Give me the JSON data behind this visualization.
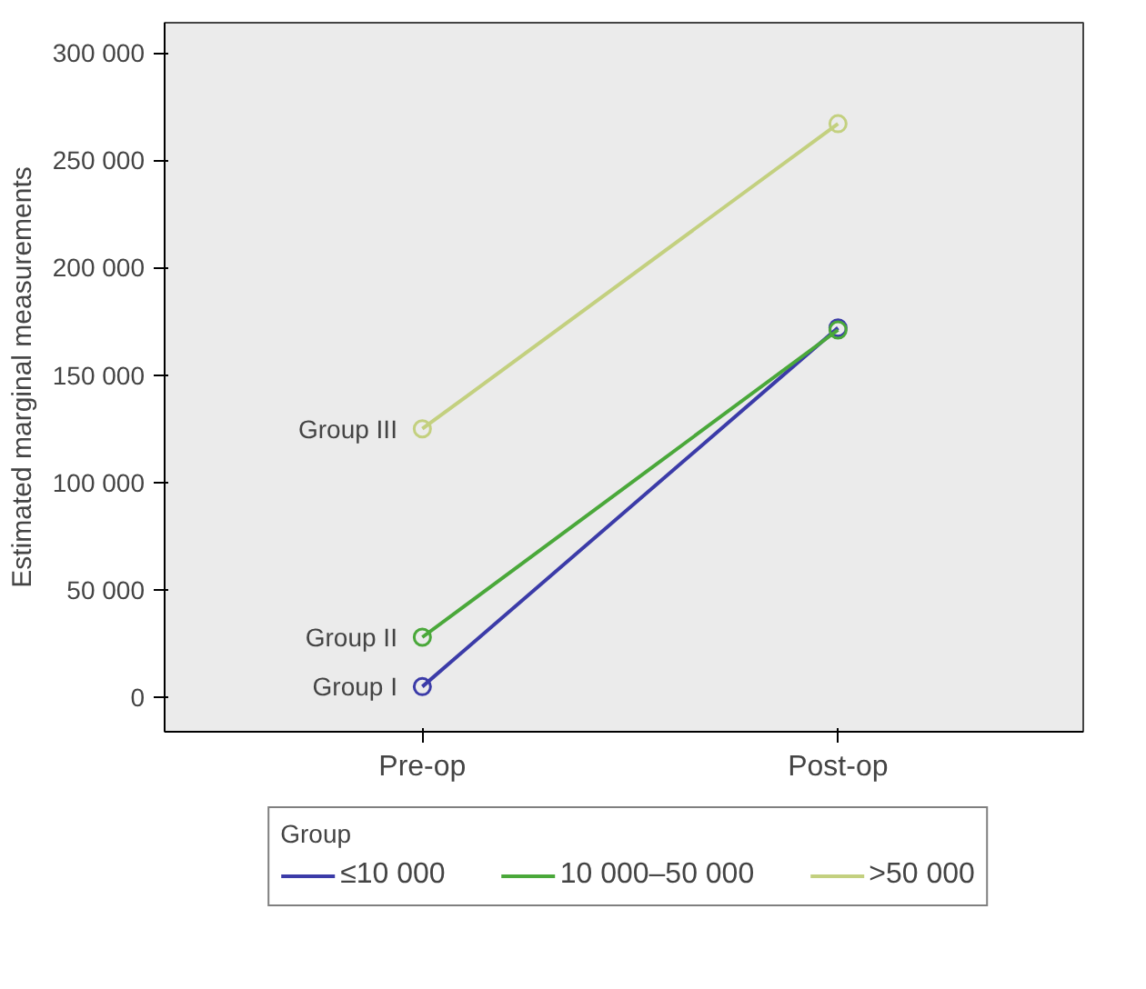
{
  "chart_data": {
    "type": "line",
    "ylabel": "Estimated marginal measurements",
    "legend_title": "Group",
    "categories": [
      "Pre-op",
      "Post-op"
    ],
    "series": [
      {
        "name": "≤10 000",
        "color": "#3b3ba8",
        "values": [
          5000,
          172000
        ]
      },
      {
        "name": "10 000–50 000",
        "color": "#4aa83a",
        "values": [
          28000,
          171000
        ]
      },
      {
        "name": ">50 000",
        "color": "#c3d07f",
        "values": [
          125000,
          267000
        ]
      }
    ],
    "annotations": [
      {
        "text": "Group I",
        "x": "Pre-op",
        "y": 5000
      },
      {
        "text": "Group II",
        "x": "Pre-op",
        "y": 28000
      },
      {
        "text": "Group III",
        "x": "Pre-op",
        "y": 125000
      }
    ],
    "ylim": [
      -16000,
      314000
    ],
    "yticks": [
      {
        "value": 0,
        "label": "0"
      },
      {
        "value": 50000,
        "label": "50 000"
      },
      {
        "value": 100000,
        "label": "100 000"
      },
      {
        "value": 150000,
        "label": "150 000"
      },
      {
        "value": 200000,
        "label": "200 000"
      },
      {
        "value": 250000,
        "label": "250 000"
      },
      {
        "value": 300000,
        "label": "300 000"
      }
    ],
    "grid": false,
    "legend": "bottom",
    "marker": "circle",
    "line_style": "solid"
  }
}
